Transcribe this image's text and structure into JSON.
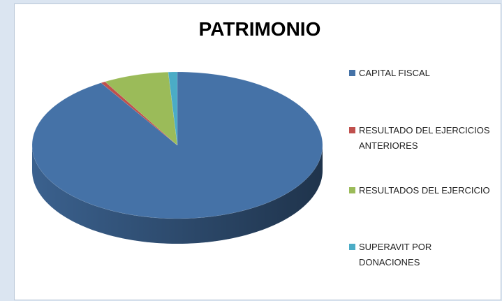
{
  "chart_data": {
    "type": "pie",
    "title": "PATRIMONIO",
    "categories": [
      "CAPITAL FISCAL",
      "RESULTADO DEL EJERCICIOS ANTERIORES",
      "RESULTADOS DEL EJERCICIO",
      "SUPERAVIT POR DONACIONES"
    ],
    "values": [
      91.2,
      0.5,
      7.3,
      1.0
    ],
    "colors": [
      "#4572a7",
      "#c0504d",
      "#9bbb59",
      "#4bacc6"
    ],
    "legend": "right"
  }
}
